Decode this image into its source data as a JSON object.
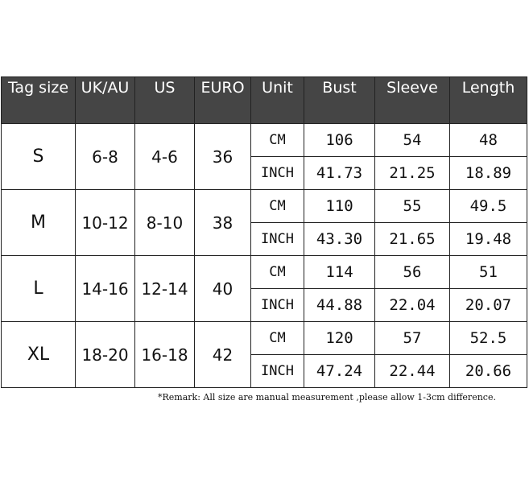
{
  "headers": [
    "Tag size",
    "UK/AU",
    "US",
    "EURO",
    "Unit",
    "Bust",
    "Sleeve",
    "Length"
  ],
  "rows": [
    {
      "tag": "S",
      "uk": "6-8",
      "us": "4-6",
      "euro": "36",
      "cm": {
        "unit": "CM",
        "bust": "106",
        "sleeve": "54",
        "length": "48"
      },
      "inch": {
        "unit": "INCH",
        "bust": "41.73",
        "sleeve": "21.25",
        "length": "18.89"
      }
    },
    {
      "tag": "M",
      "uk": "10-12",
      "us": "8-10",
      "euro": "38",
      "cm": {
        "unit": "CM",
        "bust": "110",
        "sleeve": "55",
        "length": "49.5"
      },
      "inch": {
        "unit": "INCH",
        "bust": "43.30",
        "sleeve": "21.65",
        "length": "19.48"
      }
    },
    {
      "tag": "L",
      "uk": "14-16",
      "us": "12-14",
      "euro": "40",
      "cm": {
        "unit": "CM",
        "bust": "114",
        "sleeve": "56",
        "length": "51"
      },
      "inch": {
        "unit": "INCH",
        "bust": "44.88",
        "sleeve": "22.04",
        "length": "20.07"
      }
    },
    {
      "tag": "XL",
      "uk": "18-20",
      "us": "16-18",
      "euro": "42",
      "cm": {
        "unit": "CM",
        "bust": "120",
        "sleeve": "57",
        "length": "52.5"
      },
      "inch": {
        "unit": "INCH",
        "bust": "47.24",
        "sleeve": "22.44",
        "length": "20.66"
      }
    }
  ],
  "remark": "*Remark: All size are manual measurement ,please allow 1-3cm difference.",
  "colors": {
    "header_bg": "#454545",
    "header_text": "#ffffff",
    "border": "#222222"
  }
}
